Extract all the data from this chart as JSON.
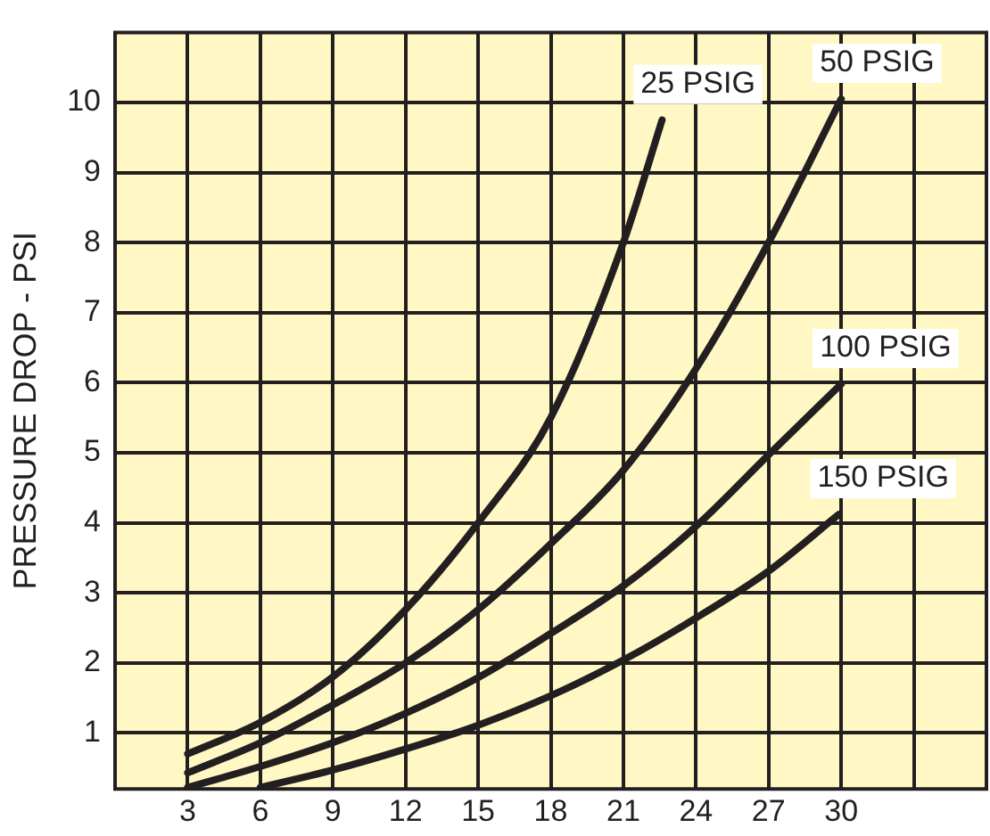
{
  "chart_data": {
    "type": "line",
    "ylabel": "PRESSURE DROP - PSI",
    "xlim": [
      0,
      36
    ],
    "ylim": [
      0.2,
      11
    ],
    "xticks": [
      3,
      6,
      9,
      12,
      15,
      18,
      21,
      24,
      27,
      30,
      {
        "value": 33,
        "label": null
      }
    ],
    "yticks": [
      1,
      2,
      3,
      4,
      5,
      6,
      7,
      8,
      9,
      10
    ],
    "grid": true,
    "legend": false,
    "marker": "none",
    "line_style": "solid",
    "series": [
      {
        "name": "25 PSIG",
        "color": "#231f20",
        "x": [
          3,
          6,
          9,
          12,
          15,
          18,
          21,
          22.6
        ],
        "values": [
          0.7,
          1.15,
          1.8,
          2.76,
          4.0,
          5.5,
          8.0,
          9.75
        ]
      },
      {
        "name": "50 PSIG",
        "color": "#231f20",
        "x": [
          3,
          6,
          9,
          12,
          15,
          18,
          21,
          24,
          27,
          30
        ],
        "values": [
          0.43,
          0.86,
          1.4,
          2.0,
          2.76,
          3.7,
          4.75,
          6.2,
          8.0,
          10.05
        ]
      },
      {
        "name": "100 PSIG",
        "color": "#231f20",
        "x": [
          3,
          6,
          9,
          12,
          15,
          18,
          21,
          24,
          27,
          30
        ],
        "values": [
          0.22,
          0.52,
          0.86,
          1.28,
          1.79,
          2.42,
          3.1,
          3.95,
          4.97,
          5.98
        ]
      },
      {
        "name": "150 PSIG",
        "color": "#231f20",
        "x": [
          6,
          9,
          12,
          15,
          18,
          21,
          24,
          27,
          29.9
        ],
        "values": [
          0.22,
          0.47,
          0.77,
          1.11,
          1.53,
          2.04,
          2.64,
          3.31,
          4.12
        ]
      }
    ]
  }
}
